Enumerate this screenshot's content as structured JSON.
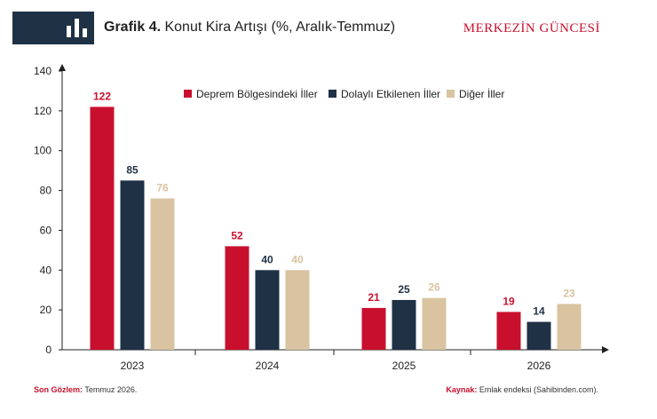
{
  "header": {
    "title_bold": "Grafik 4.",
    "title_rest": "Konut Kira Artışı (%, Aralık-Temmuz)",
    "brand": "MERKEZİN GÜNCESİ"
  },
  "footer": {
    "last_obs_label": "Son Gözlem:",
    "last_obs_value": "Temmuz 2026.",
    "source_label": "Kaynak:",
    "source_value": "Emlak endeksi (Sahibinden.com)."
  },
  "colors": {
    "red": "#c8102e",
    "navy": "#1f3145",
    "beige": "#d9c3a1",
    "header_box": "#1f3145"
  },
  "chart_data": {
    "type": "bar",
    "categories": [
      "2023",
      "2024",
      "2025",
      "2026"
    ],
    "series": [
      {
        "name": "Deprem Bölgesindeki İller",
        "values": [
          122,
          52,
          21,
          19
        ],
        "color": "#c8102e"
      },
      {
        "name": "Dolaylı Etkilenen İller",
        "values": [
          85,
          40,
          25,
          14
        ],
        "color": "#1f3145"
      },
      {
        "name": "Diğer İller",
        "values": [
          76,
          40,
          26,
          23
        ],
        "color": "#d9c3a1"
      }
    ],
    "ylim": [
      0,
      140
    ],
    "yticks": [
      0,
      20,
      40,
      60,
      80,
      100,
      120,
      140
    ],
    "legend_position": "top",
    "grid": false,
    "data_labels": true
  }
}
